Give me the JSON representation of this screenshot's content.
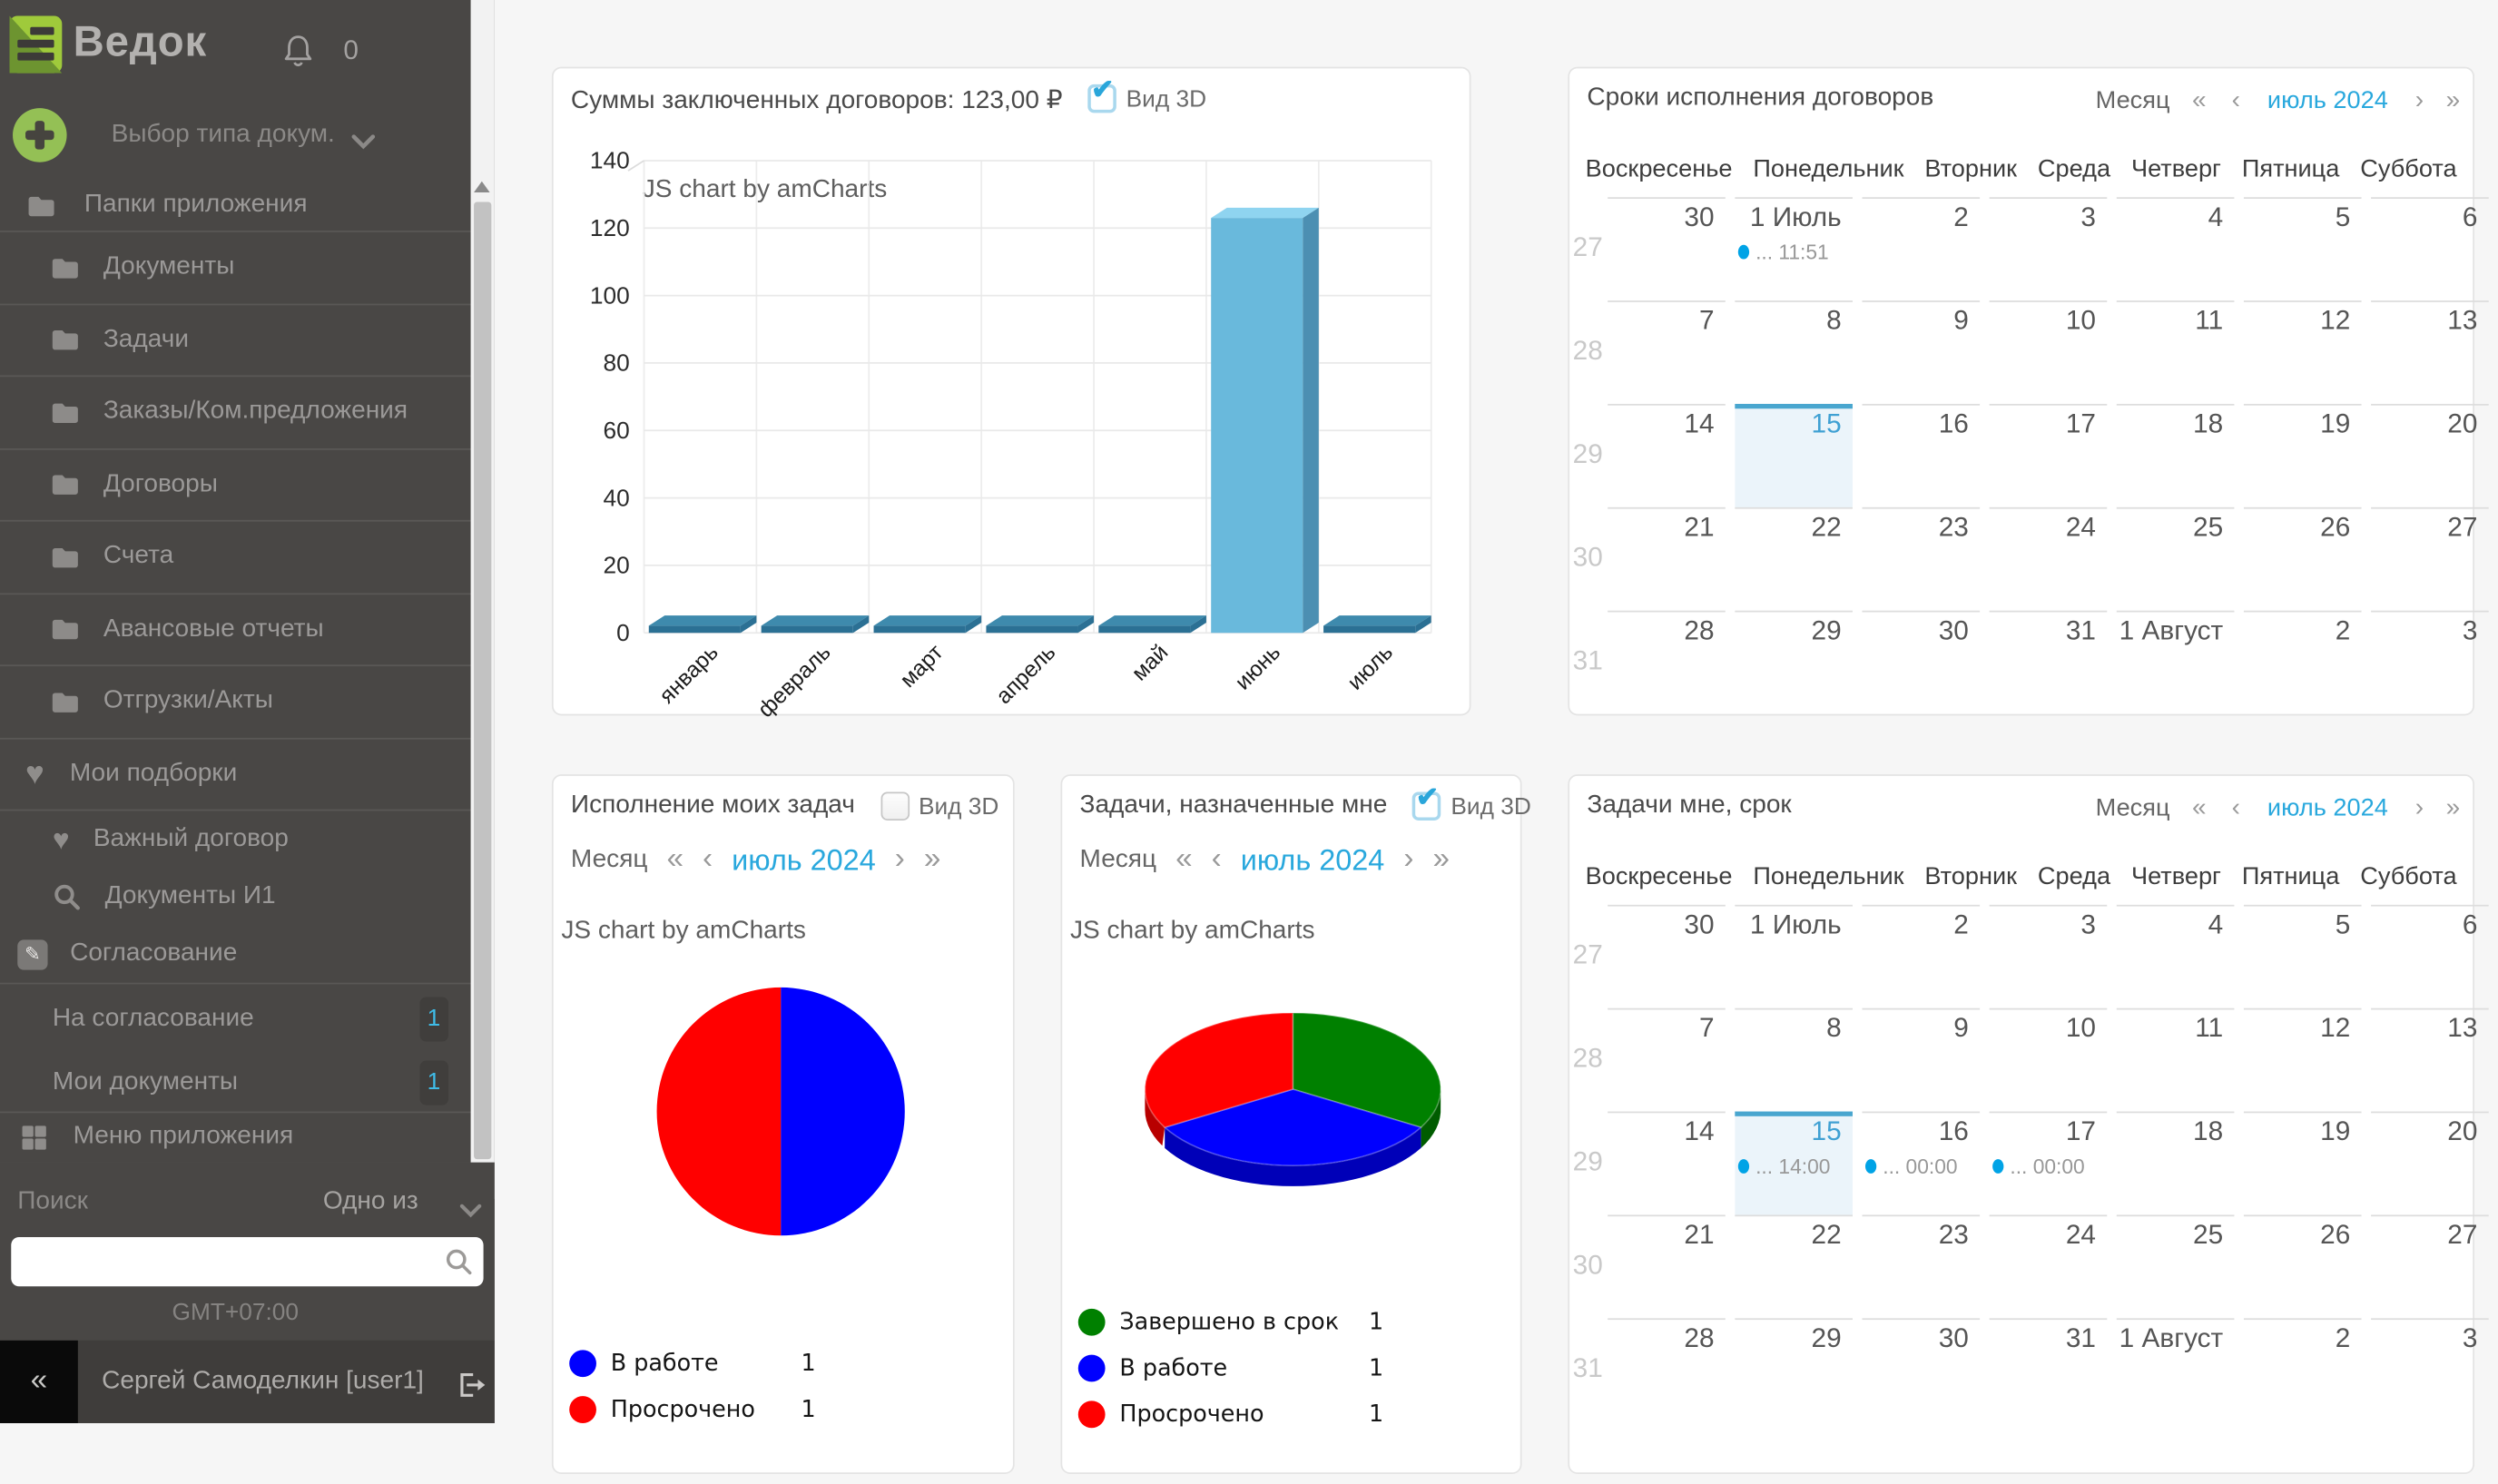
{
  "app": {
    "accent": "#29a8dd",
    "colors": {
      "grid": "#e9e9e9",
      "axis_text": "#2b2b2b",
      "bar_front": "#69b9dc",
      "bar_top": "#8fd4f0",
      "bar_side": "#4c8fb2",
      "slab_front": "#2b7094",
      "slab_top": "#3e8aad",
      "event_dot": "#00a3e6",
      "cal_highlight_bg": "#ebf4fa",
      "cal_highlight_border": "#49a6cf"
    }
  },
  "sidebar": {
    "logo_text": "Ведок",
    "bell_count": "0",
    "doc_type_picker": "Выбор типа докум.",
    "folders_header": "Папки приложения",
    "folders": [
      "Документы",
      "Задачи",
      "Заказы/Ком.предложения",
      "Договоры",
      "Счета",
      "Авансовые отчеты",
      "Отгрузки/Акты"
    ],
    "collections_header": "Мои подборки",
    "collections": [
      {
        "label": "Важный договор",
        "icon": "heart"
      },
      {
        "label": "Документы И1",
        "icon": "search"
      }
    ],
    "approval_header": "Согласование",
    "approval_items": [
      {
        "label": "На согласование",
        "badge": "1"
      },
      {
        "label": "Мои документы",
        "badge": "1"
      }
    ],
    "menu_label": "Меню приложения",
    "search_label": "Поиск",
    "search_mode": "Одно из",
    "search_value": "",
    "timezone": "GMT+07:00",
    "user_name": "Сергей Самоделкин [user1]",
    "collapse_glyph": "«"
  },
  "controls": {
    "month_label": "Месяц",
    "period": "июль 2024",
    "prev_year": "«",
    "prev": "‹",
    "next": "›",
    "next_year": "»",
    "view3d_label": "Вид 3D"
  },
  "panels": {
    "contracts_sum": {
      "title": "Суммы заключенных договоров: 123,00 ₽",
      "view3d_checked": true,
      "watermark": "JS chart by amCharts"
    },
    "contracts_deadlines": {
      "title": "Сроки исполнения договоров"
    },
    "my_tasks": {
      "title": "Исполнение моих задач",
      "view3d_checked": false,
      "watermark": "JS chart by amCharts"
    },
    "assigned_tasks": {
      "title": "Задачи, назначенные мне",
      "view3d_checked": true,
      "watermark": "JS chart by amCharts"
    },
    "tasks_due": {
      "title": "Задачи мне, срок"
    }
  },
  "calendars": {
    "weekdays": [
      "Воскресенье",
      "Понедельник",
      "Вторник",
      "Среда",
      "Четверг",
      "Пятница",
      "Суббота"
    ],
    "contracts": {
      "week_numbers": [
        27,
        28,
        29,
        30,
        31
      ],
      "weeks": [
        [
          {
            "d": "30"
          },
          {
            "d": "1 Июль",
            "ev": "... 11:51"
          },
          {
            "d": "2"
          },
          {
            "d": "3"
          },
          {
            "d": "4"
          },
          {
            "d": "5"
          },
          {
            "d": "6"
          }
        ],
        [
          {
            "d": "7"
          },
          {
            "d": "8"
          },
          {
            "d": "9"
          },
          {
            "d": "10"
          },
          {
            "d": "11"
          },
          {
            "d": "12"
          },
          {
            "d": "13"
          }
        ],
        [
          {
            "d": "14"
          },
          {
            "d": "15",
            "hl": true
          },
          {
            "d": "16"
          },
          {
            "d": "17"
          },
          {
            "d": "18"
          },
          {
            "d": "19"
          },
          {
            "d": "20"
          }
        ],
        [
          {
            "d": "21"
          },
          {
            "d": "22"
          },
          {
            "d": "23"
          },
          {
            "d": "24"
          },
          {
            "d": "25"
          },
          {
            "d": "26"
          },
          {
            "d": "27"
          }
        ],
        [
          {
            "d": "28"
          },
          {
            "d": "29"
          },
          {
            "d": "30"
          },
          {
            "d": "31"
          },
          {
            "d": "1 Август"
          },
          {
            "d": "2"
          },
          {
            "d": "3"
          }
        ]
      ]
    },
    "tasks": {
      "week_numbers": [
        27,
        28,
        29,
        30,
        31
      ],
      "weeks": [
        [
          {
            "d": "30"
          },
          {
            "d": "1 Июль"
          },
          {
            "d": "2"
          },
          {
            "d": "3"
          },
          {
            "d": "4"
          },
          {
            "d": "5"
          },
          {
            "d": "6"
          }
        ],
        [
          {
            "d": "7"
          },
          {
            "d": "8"
          },
          {
            "d": "9"
          },
          {
            "d": "10"
          },
          {
            "d": "11"
          },
          {
            "d": "12"
          },
          {
            "d": "13"
          }
        ],
        [
          {
            "d": "14"
          },
          {
            "d": "15",
            "hl": true,
            "ev": "... 14:00"
          },
          {
            "d": "16",
            "ev": "... 00:00"
          },
          {
            "d": "17",
            "ev": "... 00:00"
          },
          {
            "d": "18"
          },
          {
            "d": "19"
          },
          {
            "d": "20"
          }
        ],
        [
          {
            "d": "21"
          },
          {
            "d": "22"
          },
          {
            "d": "23"
          },
          {
            "d": "24"
          },
          {
            "d": "25"
          },
          {
            "d": "26"
          },
          {
            "d": "27"
          }
        ],
        [
          {
            "d": "28"
          },
          {
            "d": "29"
          },
          {
            "d": "30"
          },
          {
            "d": "31"
          },
          {
            "d": "1 Август"
          },
          {
            "d": "2"
          },
          {
            "d": "3"
          }
        ]
      ]
    }
  },
  "chart_data": [
    {
      "type": "bar",
      "title": "Суммы заключенных договоров: 123,00 ₽",
      "categories": [
        "январь",
        "февраль",
        "март",
        "апрель",
        "май",
        "июнь",
        "июль"
      ],
      "values": [
        0,
        0,
        0,
        0,
        0,
        123,
        0
      ],
      "xlabel": "",
      "ylabel": "",
      "ylim": [
        0,
        140
      ],
      "ytick_step": 20,
      "grid": true,
      "view_3d": true,
      "watermark": "JS chart by amCharts"
    },
    {
      "type": "pie",
      "title": "Исполнение моих задач",
      "labels": [
        "В работе",
        "Просрочено"
      ],
      "values": [
        1,
        1
      ],
      "colors": [
        "#0000ff",
        "#ff0000"
      ],
      "view_3d": false,
      "legend_position": "bottom"
    },
    {
      "type": "pie",
      "title": "Задачи, назначенные мне",
      "labels": [
        "Завершено в срок",
        "В работе",
        "Просрочено"
      ],
      "values": [
        1,
        1,
        1
      ],
      "colors": [
        "#008000",
        "#0000ff",
        "#ff0000"
      ],
      "view_3d": true,
      "legend_position": "bottom"
    }
  ]
}
